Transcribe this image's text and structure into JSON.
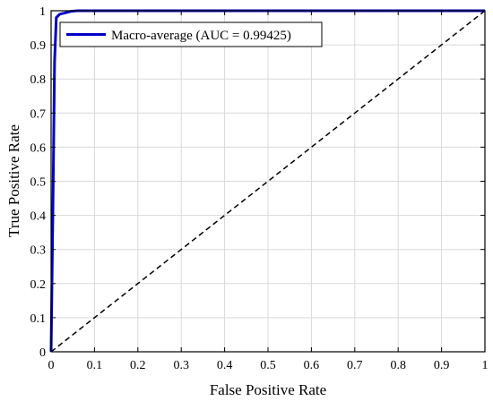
{
  "chart_data": {
    "type": "line",
    "xlabel": "False Positive Rate",
    "ylabel": "True Positive Rate",
    "xlim": [
      0,
      1
    ],
    "ylim": [
      0,
      1
    ],
    "xticks": [
      "0",
      "0.1",
      "0.2",
      "0.3",
      "0.4",
      "0.5",
      "0.6",
      "0.7",
      "0.8",
      "0.9",
      "1"
    ],
    "yticks": [
      "0",
      "0.1",
      "0.2",
      "0.3",
      "0.4",
      "0.5",
      "0.6",
      "0.7",
      "0.8",
      "0.9",
      "1"
    ],
    "grid": true,
    "legend_position": "top-left",
    "series": [
      {
        "name": "Macro-average (AUC = 0.99425)",
        "color": "#0000c8",
        "style": "solid",
        "x": [
          0,
          0.004,
          0.008,
          0.012,
          0.02,
          0.03,
          0.045,
          0.06,
          1
        ],
        "y": [
          0,
          0.4,
          0.85,
          0.98,
          0.99,
          0.993,
          0.998,
          1.0,
          1.0
        ]
      },
      {
        "name": "",
        "color": "#000000",
        "style": "dashed",
        "x": [
          0,
          1
        ],
        "y": [
          0,
          1
        ]
      }
    ]
  }
}
